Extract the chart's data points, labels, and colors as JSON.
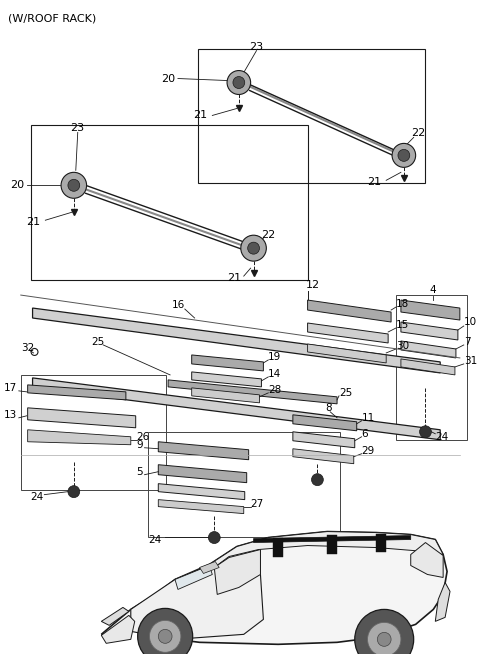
{
  "title": "(W/ROOF RACK)",
  "bg_color": "#ffffff",
  "lc": "#1a1a1a",
  "gray_light": "#d0d0d0",
  "gray_mid": "#aaaaaa",
  "gray_dark": "#888888"
}
